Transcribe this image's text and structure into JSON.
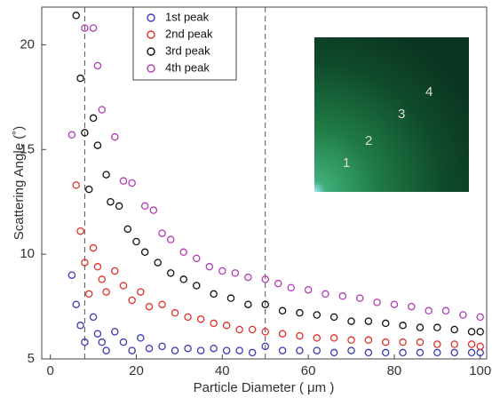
{
  "chart_data": {
    "type": "scatter",
    "xlabel": "Particle Diameter ( μm )",
    "ylabel": "Scattering Angle (˚)",
    "xlim": [
      -2,
      101.5
    ],
    "ylim": [
      5,
      21.8
    ],
    "xticks": [
      0,
      20,
      40,
      60,
      80,
      100
    ],
    "yticks": [
      5,
      10,
      15,
      20
    ],
    "vlines": [
      8,
      50
    ],
    "legend": "upper left",
    "annotations": [
      "1",
      "2",
      "3",
      "4"
    ],
    "series": [
      {
        "name": "1st peak",
        "color": "#3a3ab5",
        "x": [
          5,
          6,
          7,
          8,
          10,
          11,
          12,
          13,
          15,
          17,
          19,
          21,
          23,
          26,
          29,
          32,
          35,
          38,
          41,
          44,
          47,
          50,
          54,
          58,
          62,
          66,
          70,
          74,
          78,
          82,
          86,
          90,
          94,
          98,
          100
        ],
        "values": [
          9.0,
          7.6,
          6.6,
          5.8,
          7.0,
          6.2,
          5.8,
          5.4,
          6.3,
          5.8,
          5.4,
          6.0,
          5.5,
          5.6,
          5.4,
          5.5,
          5.4,
          5.5,
          5.4,
          5.4,
          5.3,
          5.6,
          5.4,
          5.4,
          5.4,
          5.3,
          5.4,
          5.3,
          5.3,
          5.3,
          5.3,
          5.3,
          5.3,
          5.3,
          5.3
        ]
      },
      {
        "name": "2nd peak",
        "color": "#e0302a",
        "x": [
          6,
          7,
          8,
          9,
          10,
          11,
          12,
          13,
          15,
          17,
          19,
          21,
          23,
          26,
          29,
          32,
          35,
          38,
          41,
          44,
          47,
          50,
          54,
          58,
          62,
          66,
          70,
          74,
          78,
          82,
          86,
          90,
          94,
          98,
          100
        ],
        "values": [
          13.3,
          11.1,
          9.6,
          8.1,
          10.3,
          9.4,
          8.8,
          8.2,
          9.2,
          8.5,
          7.8,
          8.2,
          7.5,
          7.6,
          7.2,
          7.0,
          6.9,
          6.7,
          6.6,
          6.4,
          6.4,
          6.3,
          6.2,
          6.1,
          6.0,
          6.0,
          5.9,
          5.9,
          5.8,
          5.8,
          5.8,
          5.7,
          5.7,
          5.7,
          5.6
        ]
      },
      {
        "name": "3rd peak",
        "color": "#111111",
        "x": [
          6,
          7,
          8,
          9,
          10,
          11,
          13,
          14,
          16,
          18,
          20,
          22,
          25,
          28,
          31,
          34,
          38,
          42,
          46,
          50,
          54,
          58,
          62,
          66,
          70,
          74,
          78,
          82,
          86,
          90,
          94,
          98,
          100
        ],
        "values": [
          21.4,
          18.4,
          15.8,
          13.1,
          16.5,
          15.2,
          13.8,
          12.5,
          12.3,
          11.2,
          10.6,
          10.1,
          9.6,
          9.1,
          8.8,
          8.5,
          8.1,
          7.9,
          7.6,
          7.6,
          7.3,
          7.2,
          7.1,
          7.0,
          6.8,
          6.8,
          6.7,
          6.6,
          6.5,
          6.5,
          6.4,
          6.3,
          6.3
        ]
      },
      {
        "name": "4th peak",
        "color": "#b03cb5",
        "x": [
          5,
          8,
          10,
          11,
          12,
          15,
          17,
          19,
          22,
          24,
          26,
          28,
          31,
          34,
          37,
          40,
          43,
          46,
          50,
          53,
          56,
          60,
          64,
          68,
          72,
          76,
          80,
          84,
          88,
          92,
          96,
          100
        ],
        "values": [
          15.7,
          20.8,
          20.8,
          19.0,
          16.9,
          15.6,
          13.5,
          13.4,
          12.3,
          12.1,
          11.0,
          10.7,
          10.1,
          9.8,
          9.4,
          9.2,
          9.1,
          8.9,
          8.8,
          8.6,
          8.4,
          8.3,
          8.1,
          8.0,
          7.9,
          7.7,
          7.6,
          7.5,
          7.3,
          7.3,
          7.1,
          7.0
        ]
      }
    ]
  }
}
